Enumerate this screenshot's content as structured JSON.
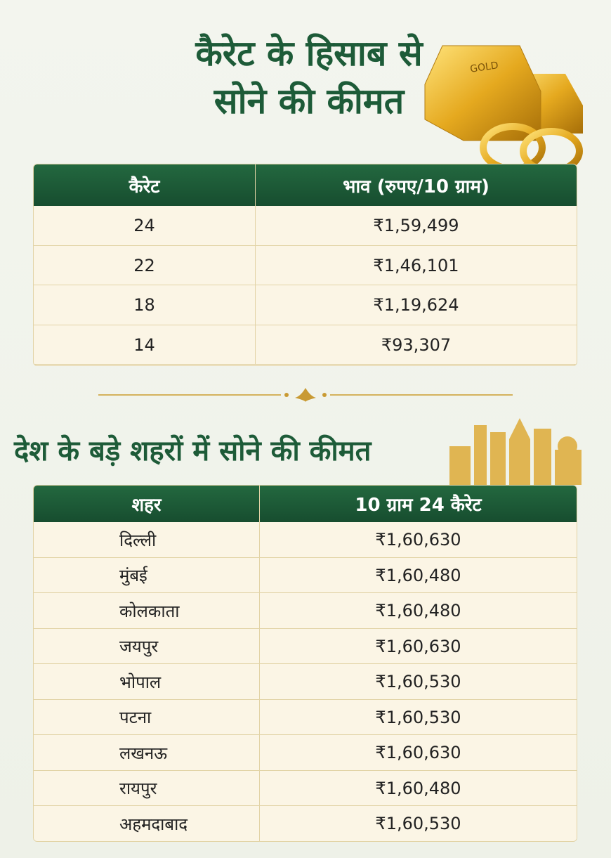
{
  "title": {
    "line1": "कैरेट के हिसाब से",
    "line2": "सोने की कीमत"
  },
  "gold_bar_label": "GOLD",
  "carat_table": {
    "headers": [
      "कैरेट",
      "भाव (रुपए/10 ग्राम)"
    ],
    "rows": [
      [
        "24",
        "₹1,59,499"
      ],
      [
        "22",
        "₹1,46,101"
      ],
      [
        "18",
        "₹1,19,624"
      ],
      [
        "14",
        "₹93,307"
      ]
    ]
  },
  "city_title": "देश के बड़े शहरों में सोने की कीमत",
  "city_table": {
    "headers": [
      "शहर",
      "10 ग्राम 24 कैरेट"
    ],
    "rows": [
      [
        "दिल्ली",
        "₹1,60,630"
      ],
      [
        "मुंबई",
        "₹1,60,480"
      ],
      [
        "कोलकाता",
        "₹1,60,480"
      ],
      [
        "जयपुर",
        "₹1,60,630"
      ],
      [
        "भोपाल",
        "₹1,60,530"
      ],
      [
        "पटना",
        "₹1,60,530"
      ],
      [
        "लखनऊ",
        "₹1,60,630"
      ],
      [
        "रायपुर",
        "₹1,60,480"
      ],
      [
        "अहमदाबाद",
        "₹1,60,530"
      ]
    ]
  }
}
